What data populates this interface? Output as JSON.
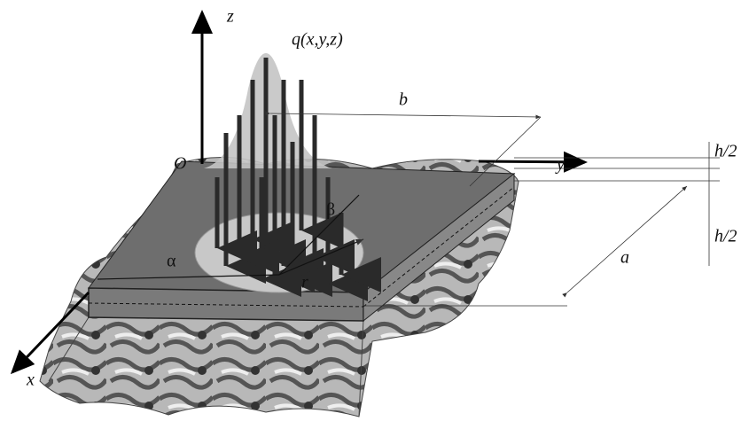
{
  "axes": {
    "z": "z",
    "y": "y",
    "x": "x",
    "origin": "O"
  },
  "load": "q(x,y,z)",
  "dimensions": {
    "a": "a",
    "b": "b",
    "h_top": "h/2",
    "h_bottom": "h/2"
  },
  "angles": {
    "alpha": "α",
    "beta": "β"
  },
  "radius": "r"
}
